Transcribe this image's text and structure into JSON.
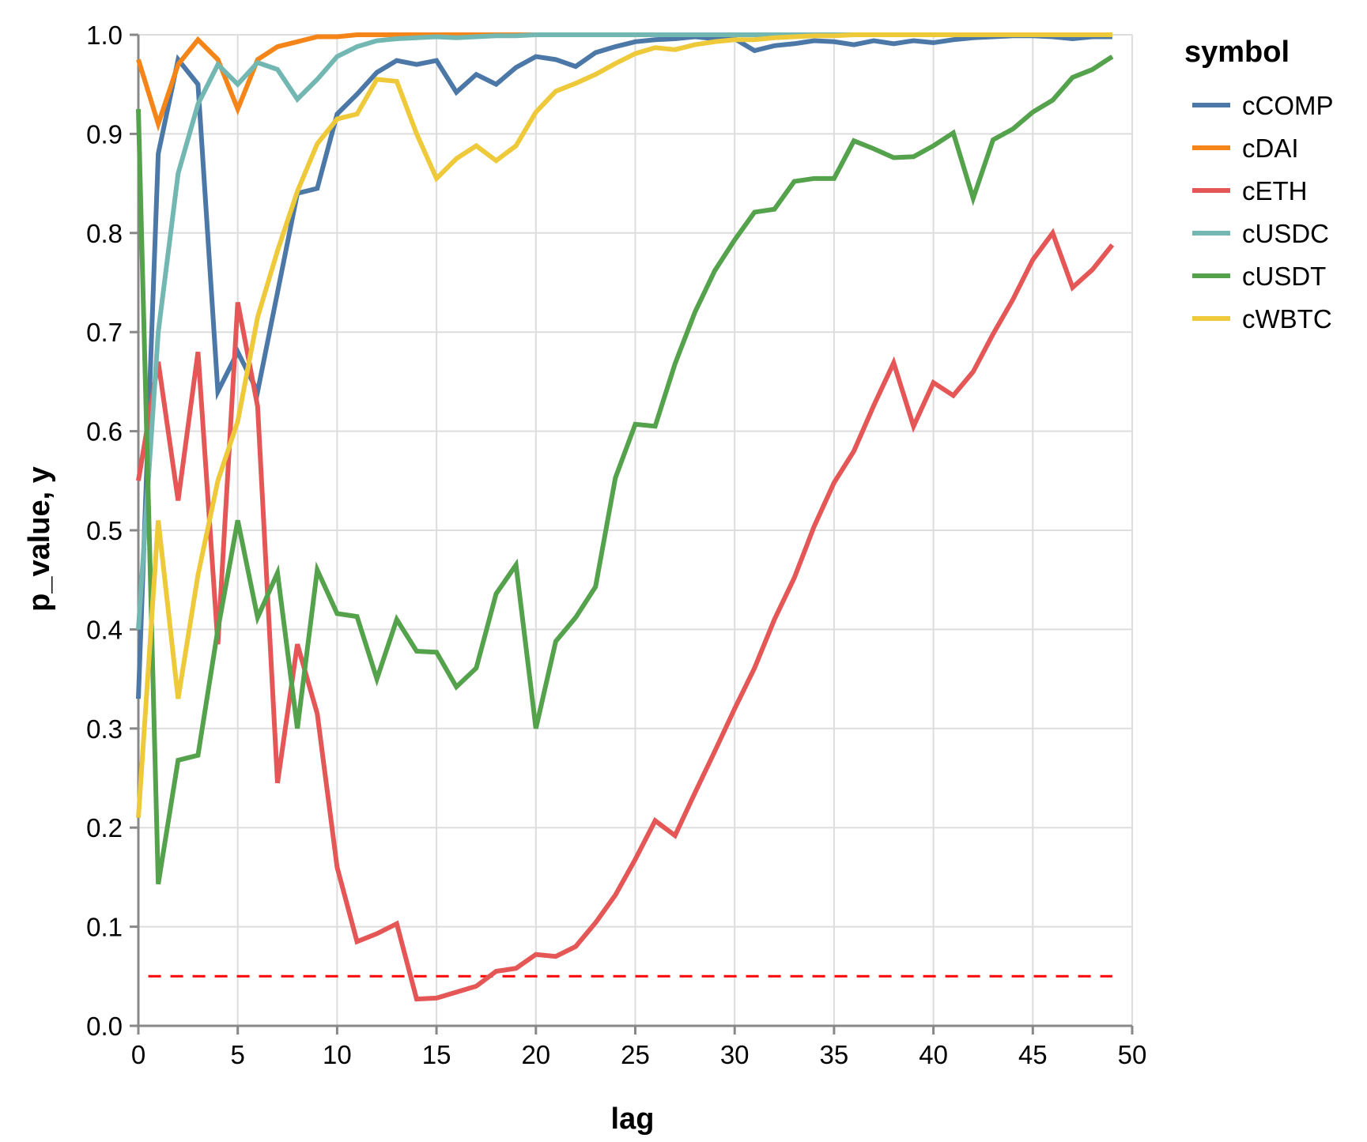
{
  "chart_data": {
    "type": "line",
    "xlabel": "lag",
    "ylabel": "p_value, y",
    "xlim": [
      0,
      50
    ],
    "ylim": [
      0,
      1
    ],
    "x_ticks": [
      0,
      5,
      10,
      15,
      20,
      25,
      30,
      35,
      40,
      45,
      50
    ],
    "y_ticks": [
      0.0,
      0.1,
      0.2,
      0.3,
      0.4,
      0.5,
      0.6,
      0.7,
      0.8,
      0.9,
      1.0
    ],
    "y_tick_labels": [
      "0.0",
      "0.1",
      "0.2",
      "0.3",
      "0.4",
      "0.5",
      "0.6",
      "0.7",
      "0.8",
      "0.9",
      "1.0"
    ],
    "grid": true,
    "legend": {
      "title": "symbol",
      "position": "right"
    },
    "threshold": {
      "y": 0.05,
      "color": "#ff0000",
      "style": "dashed"
    },
    "series": [
      {
        "name": "cCOMP",
        "color": "#4c78a8",
        "values": [
          0.33,
          0.88,
          0.975,
          0.95,
          0.64,
          0.68,
          0.64,
          0.74,
          0.84,
          0.845,
          0.92,
          0.94,
          0.962,
          0.974,
          0.97,
          0.974,
          0.942,
          0.96,
          0.95,
          0.967,
          0.978,
          0.975,
          0.968,
          0.982,
          0.988,
          0.993,
          0.995,
          0.996,
          0.998,
          0.996,
          0.996,
          0.984,
          0.989,
          0.991,
          0.994,
          0.993,
          0.99,
          0.994,
          0.991,
          0.994,
          0.992,
          0.995,
          0.997,
          0.998,
          0.999,
          0.999,
          0.998,
          0.996,
          0.998,
          0.998
        ]
      },
      {
        "name": "cDAI",
        "color": "#f58518",
        "values": [
          0.975,
          0.91,
          0.97,
          0.995,
          0.975,
          0.925,
          0.975,
          0.988,
          0.993,
          0.998,
          0.998,
          1.0,
          1.0,
          1.0,
          1.0,
          1.0,
          1.0,
          1.0,
          1.0,
          1.0,
          1.0,
          1.0,
          1.0,
          1.0,
          1.0,
          1.0,
          1.0,
          1.0,
          1.0,
          1.0,
          1.0,
          1.0,
          1.0,
          1.0,
          1.0,
          1.0,
          1.0,
          1.0,
          1.0,
          1.0,
          1.0,
          1.0,
          1.0,
          1.0,
          1.0,
          1.0,
          1.0,
          1.0,
          1.0,
          1.0
        ]
      },
      {
        "name": "cETH",
        "color": "#e45756",
        "values": [
          0.55,
          0.67,
          0.53,
          0.68,
          0.385,
          0.73,
          0.625,
          0.245,
          0.385,
          0.315,
          0.16,
          0.085,
          0.093,
          0.103,
          0.027,
          0.028,
          0.034,
          0.04,
          0.055,
          0.058,
          0.072,
          0.07,
          0.08,
          0.104,
          0.132,
          0.168,
          0.207,
          0.192,
          0.235,
          0.277,
          0.32,
          0.361,
          0.41,
          0.452,
          0.504,
          0.548,
          0.58,
          0.626,
          0.669,
          0.605,
          0.649,
          0.636,
          0.66,
          0.698,
          0.733,
          0.773,
          0.8,
          0.745,
          0.763,
          0.788
        ]
      },
      {
        "name": "cUSDC",
        "color": "#72b7b2",
        "values": [
          0.4,
          0.7,
          0.86,
          0.93,
          0.97,
          0.95,
          0.972,
          0.965,
          0.935,
          0.955,
          0.978,
          0.988,
          0.994,
          0.996,
          0.997,
          0.998,
          0.997,
          0.998,
          0.999,
          0.999,
          1.0,
          1.0,
          1.0,
          1.0,
          1.0,
          1.0,
          1.0,
          1.0,
          1.0,
          1.0,
          1.0,
          1.0,
          1.0,
          1.0,
          1.0,
          1.0,
          1.0,
          1.0,
          1.0,
          1.0,
          1.0,
          1.0,
          1.0,
          1.0,
          1.0,
          1.0,
          1.0,
          1.0,
          1.0,
          1.0
        ]
      },
      {
        "name": "cUSDT",
        "color": "#54a24b",
        "values": [
          0.925,
          0.143,
          0.268,
          0.273,
          0.4,
          0.51,
          0.412,
          0.457,
          0.3,
          0.46,
          0.416,
          0.413,
          0.35,
          0.41,
          0.378,
          0.377,
          0.342,
          0.361,
          0.436,
          0.465,
          0.3,
          0.388,
          0.412,
          0.443,
          0.553,
          0.607,
          0.605,
          0.668,
          0.72,
          0.762,
          0.793,
          0.821,
          0.824,
          0.852,
          0.855,
          0.855,
          0.893,
          0.885,
          0.876,
          0.877,
          0.888,
          0.901,
          0.835,
          0.894,
          0.905,
          0.922,
          0.934,
          0.957,
          0.965,
          0.978
        ]
      },
      {
        "name": "cWBTC",
        "color": "#eeca3b",
        "values": [
          0.21,
          0.51,
          0.33,
          0.455,
          0.55,
          0.61,
          0.715,
          0.782,
          0.842,
          0.89,
          0.915,
          0.92,
          0.955,
          0.953,
          0.9,
          0.855,
          0.875,
          0.888,
          0.873,
          0.888,
          0.922,
          0.943,
          0.951,
          0.96,
          0.971,
          0.981,
          0.987,
          0.985,
          0.99,
          0.993,
          0.995,
          0.995,
          0.997,
          0.998,
          0.999,
          0.999,
          1.0,
          1.0,
          1.0,
          1.0,
          1.0,
          1.0,
          1.0,
          1.0,
          1.0,
          1.0,
          1.0,
          1.0,
          1.0,
          1.0
        ]
      }
    ]
  }
}
